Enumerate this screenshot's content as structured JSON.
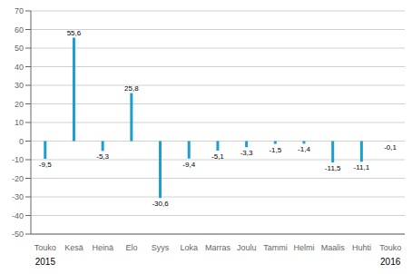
{
  "chart_data": {
    "type": "bar",
    "categories": [
      "Touko",
      "Kesä",
      "Heinä",
      "Elo",
      "Syys",
      "Loka",
      "Marras",
      "Joulu",
      "Tammi",
      "Helmi",
      "Maalis",
      "Huhti",
      "Touko"
    ],
    "values": [
      -9.5,
      55.6,
      -5.3,
      25.8,
      -30.6,
      -9.4,
      -5.1,
      -3.3,
      -1.5,
      -1.4,
      -11.5,
      -11.1,
      -0.1
    ],
    "value_labels": [
      "-9,5",
      "55,6",
      "-5,3",
      "25,8",
      "-30,6",
      "-9,4",
      "-5,1",
      "-3,3",
      "-1,5",
      "-1,4",
      "-11,5",
      "-11,1",
      "-0,1"
    ],
    "data_labels": true,
    "color": "#1b9fd0",
    "ylim": [
      -50,
      70
    ],
    "yticks": [
      -50,
      -40,
      -30,
      -20,
      -10,
      0,
      10,
      20,
      30,
      40,
      50,
      60,
      70
    ],
    "grid": true,
    "annotations": [
      {
        "text": "2015",
        "x": 0
      },
      {
        "text": "2016",
        "x": 12
      }
    ]
  }
}
